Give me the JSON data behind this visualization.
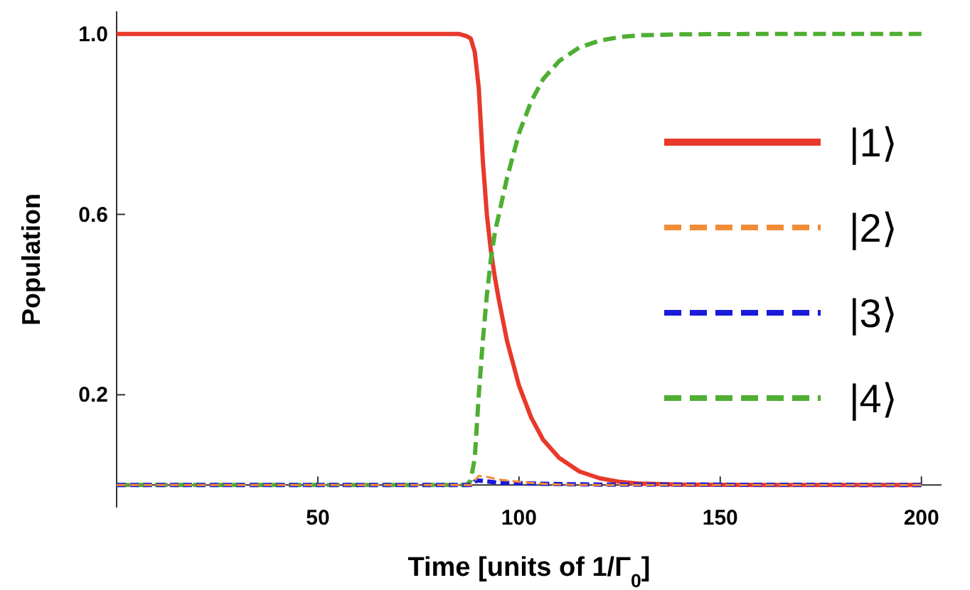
{
  "chart_data": {
    "type": "line",
    "xlabel": "Time [units of 1/Γ$_{0}$]",
    "ylabel": "Population",
    "xlim": [
      0,
      205
    ],
    "ylim": [
      -0.05,
      1.05
    ],
    "xticks": [
      50,
      100,
      150,
      200
    ],
    "yticks": [
      0.2,
      0.6,
      {
        "value": 1,
        "label": "1.0"
      }
    ],
    "legend": "right",
    "grid": false,
    "series": [
      {
        "name": "|1⟩",
        "color": "#e8392b",
        "line_style": "solid",
        "x": [
          0,
          50,
          85,
          87,
          88,
          89,
          90,
          91,
          92,
          93,
          94,
          95,
          97,
          100,
          103,
          106,
          110,
          115,
          120,
          125,
          130,
          140,
          160,
          200
        ],
        "values": [
          1,
          1,
          1,
          0.995,
          0.99,
          0.96,
          0.88,
          0.72,
          0.6,
          0.52,
          0.46,
          0.41,
          0.32,
          0.22,
          0.15,
          0.1,
          0.06,
          0.03,
          0.015,
          0.007,
          0.003,
          0.001,
          0,
          0
        ]
      },
      {
        "name": "|2⟩",
        "color": "#f28c36",
        "line_style": "dashed",
        "x": [
          0,
          50,
          88,
          89,
          90,
          92,
          95,
          100,
          105,
          110,
          120,
          200
        ],
        "values": [
          0,
          0,
          0,
          0.01,
          0.02,
          0.018,
          0.012,
          0.007,
          0.003,
          0.001,
          0,
          0
        ]
      },
      {
        "name": "|3⟩",
        "color": "#1a1adb",
        "line_style": "dashed",
        "x": [
          0,
          50,
          88,
          89,
          90,
          92,
          95,
          100,
          110,
          120,
          200
        ],
        "values": [
          0,
          0,
          0,
          0.008,
          0.01,
          0.008,
          0.005,
          0.004,
          0.002,
          0.001,
          0
        ]
      },
      {
        "name": "|4⟩",
        "color": "#4fae33",
        "line_style": "dashed",
        "x": [
          0,
          50,
          87,
          88,
          89,
          90,
          91,
          92,
          93,
          94,
          95,
          97,
          100,
          103,
          106,
          110,
          115,
          120,
          125,
          130,
          140,
          160,
          200
        ],
        "values": [
          0,
          0,
          0,
          0.01,
          0.06,
          0.2,
          0.32,
          0.42,
          0.5,
          0.56,
          0.6,
          0.68,
          0.78,
          0.85,
          0.9,
          0.94,
          0.97,
          0.985,
          0.993,
          0.997,
          0.999,
          1,
          1
        ]
      }
    ]
  }
}
